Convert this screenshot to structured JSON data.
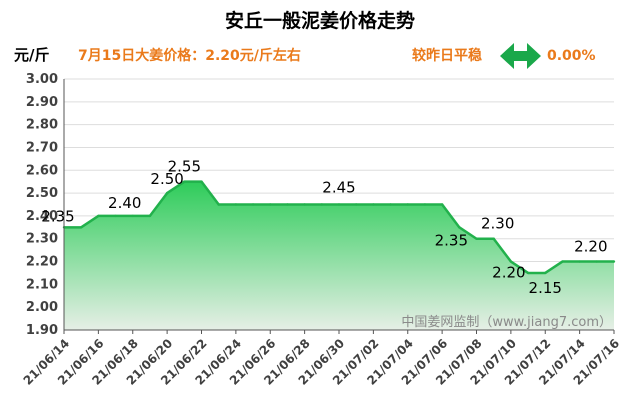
{
  "header": {
    "title": "安丘一般泥姜价格走势",
    "unit": "元/斤",
    "price_info": "7月15日大姜价格：2.20元/斤左右",
    "compare_label": "较昨日平稳",
    "change_value": "0.00%",
    "arrow_icon": "left-right-arrow-icon"
  },
  "watermark": "中国姜网监制（www.jiang7.com）",
  "colors": {
    "line": "#22b14c",
    "fill_top": "#2ecc5a",
    "fill_bottom": "#e6efe6",
    "arrow": "#1aa84a",
    "info_text": "#ea7a1b",
    "grid": "#dddddd"
  },
  "chart_data": {
    "type": "area",
    "title": "安丘一般泥姜价格走势",
    "ylabel": "元/斤",
    "xlabel": "",
    "ylim": [
      1.9,
      3.0
    ],
    "yticks": [
      3.0,
      2.9,
      2.8,
      2.7,
      2.6,
      2.5,
      2.4,
      2.3,
      2.2,
      2.1,
      2.0,
      1.9
    ],
    "ytick_labels": [
      "3.00",
      "2.90",
      "2.80",
      "2.70",
      "2.60",
      "2.50",
      "2.40",
      "2.30",
      "2.20",
      "2.10",
      "2.00",
      "1.90"
    ],
    "grid": true,
    "legend": "none",
    "x_tick_labels": [
      "21/06/14",
      "21/06/16",
      "21/06/18",
      "21/06/20",
      "21/06/22",
      "21/06/24",
      "21/06/26",
      "21/06/28",
      "21/06/30",
      "21/07/02",
      "21/07/04",
      "21/07/06",
      "21/07/08",
      "21/07/10",
      "21/07/12",
      "21/07/14",
      "21/07/16"
    ],
    "x": [
      "21/06/14",
      "21/06/15",
      "21/06/16",
      "21/06/17",
      "21/06/18",
      "21/06/19",
      "21/06/20",
      "21/06/21",
      "21/06/22",
      "21/06/23",
      "21/06/24",
      "21/06/25",
      "21/06/26",
      "21/06/27",
      "21/06/28",
      "21/06/29",
      "21/06/30",
      "21/07/01",
      "21/07/02",
      "21/07/03",
      "21/07/04",
      "21/07/05",
      "21/07/06",
      "21/07/07",
      "21/07/08",
      "21/07/09",
      "21/07/10",
      "21/07/11",
      "21/07/12",
      "21/07/13",
      "21/07/14",
      "21/07/15",
      "21/07/16"
    ],
    "series": [
      {
        "values": [
          2.35,
          2.35,
          2.4,
          2.4,
          2.4,
          2.4,
          2.5,
          2.55,
          2.55,
          2.45,
          2.45,
          2.45,
          2.45,
          2.45,
          2.45,
          2.45,
          2.45,
          2.45,
          2.45,
          2.45,
          2.45,
          2.45,
          2.45,
          2.35,
          2.3,
          2.3,
          2.2,
          2.15,
          2.15,
          2.2,
          2.2,
          2.2,
          2.2
        ]
      }
    ],
    "data_labels": [
      {
        "x": "21/06/14",
        "text": "2.35"
      },
      {
        "x": "21/06/18",
        "text": "2.40"
      },
      {
        "x": "21/06/20",
        "text": "2.50"
      },
      {
        "x": "21/06/21",
        "text": "2.55"
      },
      {
        "x": "21/06/30",
        "text": "2.45"
      },
      {
        "x": "21/07/07",
        "text": "2.35"
      },
      {
        "x": "21/07/09",
        "text": "2.30"
      },
      {
        "x": "21/07/10",
        "text": "2.20"
      },
      {
        "x": "21/07/12",
        "text": "2.15"
      },
      {
        "x": "21/07/15",
        "text": "2.20"
      }
    ]
  }
}
